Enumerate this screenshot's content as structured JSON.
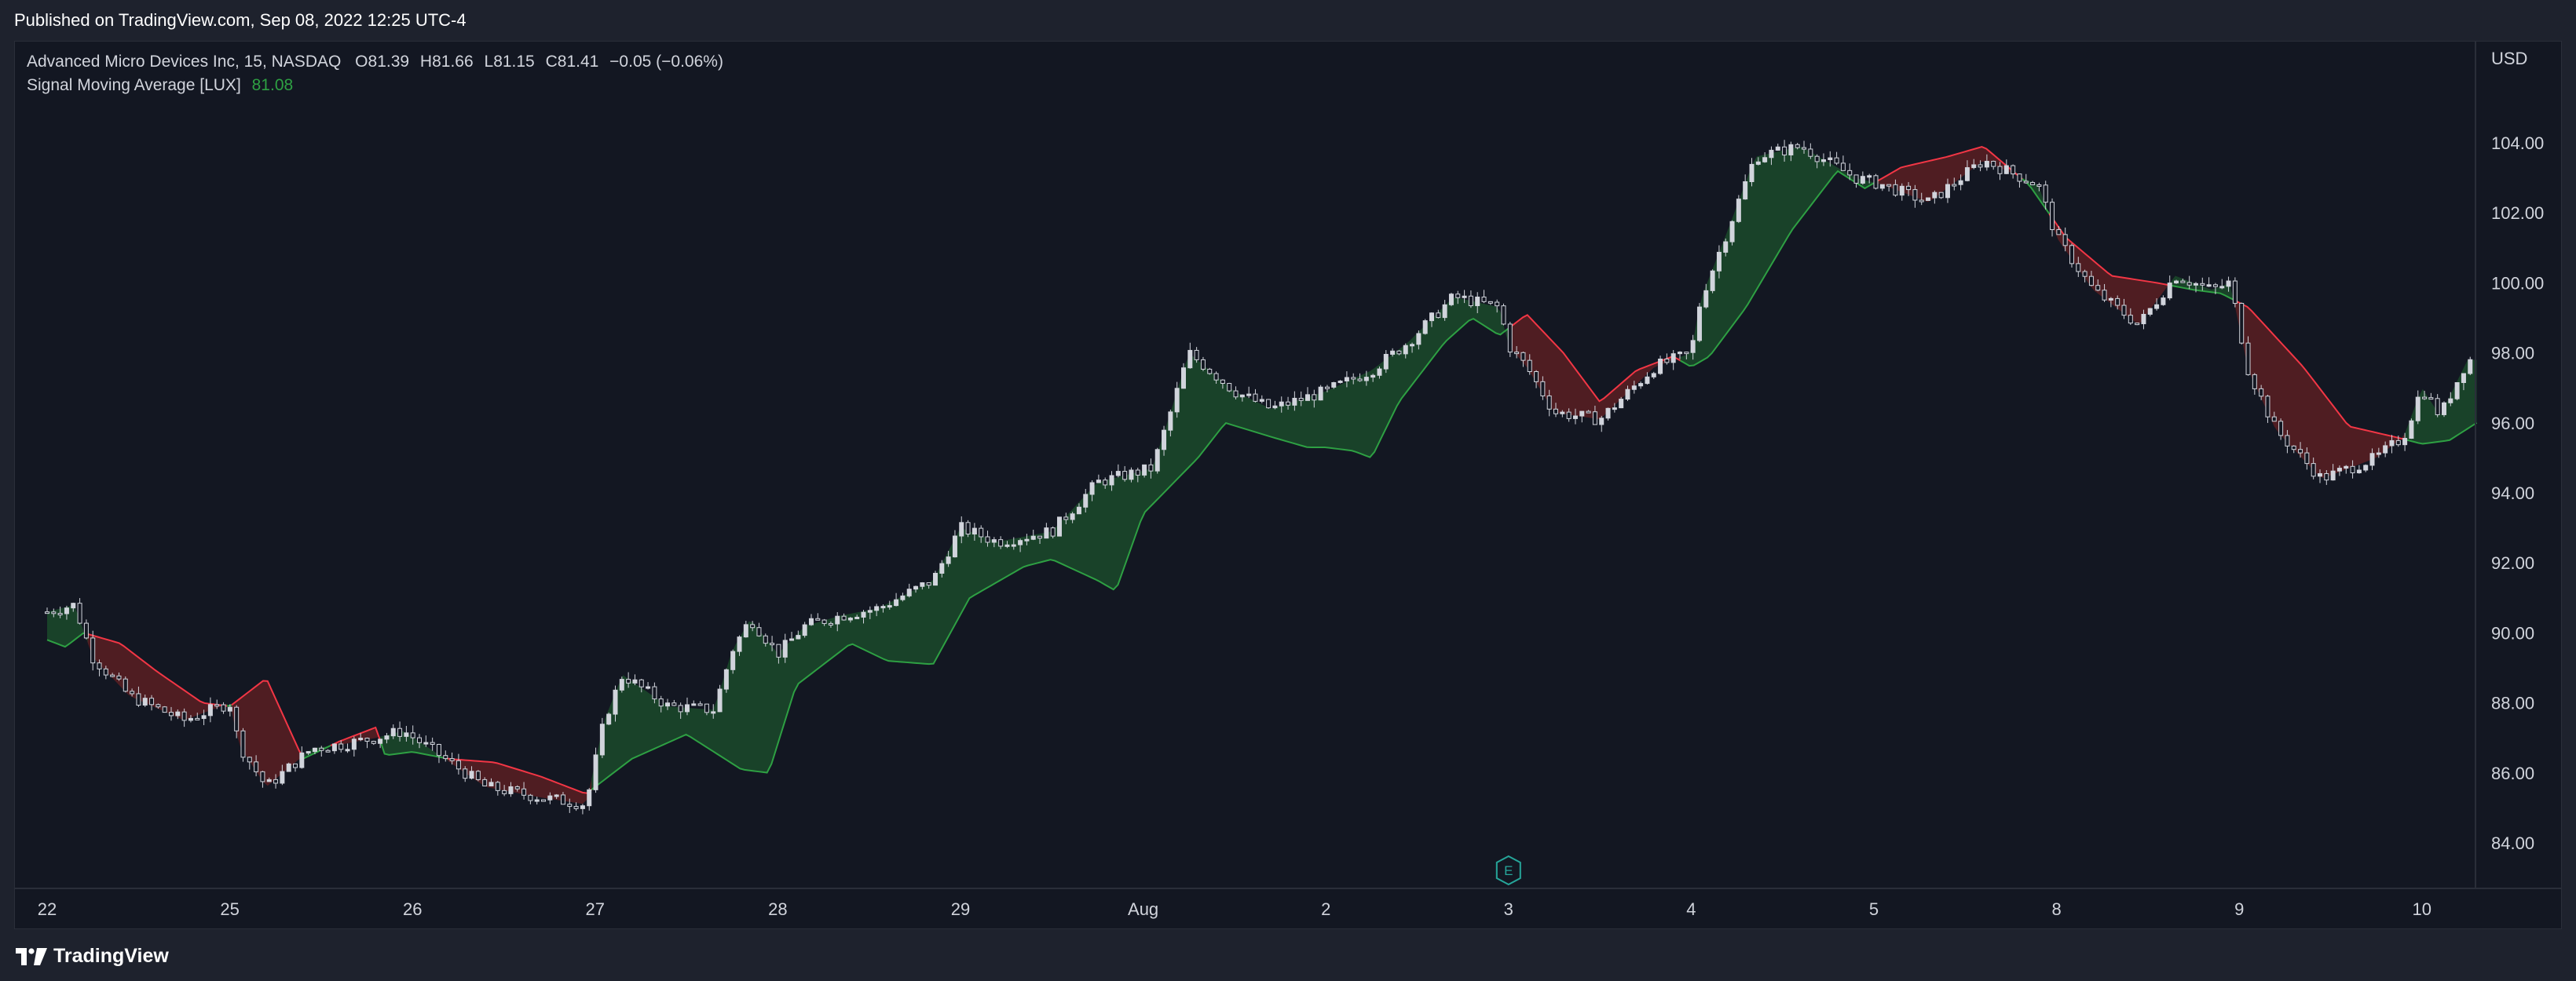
{
  "header": {
    "published": "Published on TradingView.com, Sep 08, 2022 12:25 UTC-4"
  },
  "legend": {
    "symbol": "Advanced Micro Devices Inc, 15, NASDAQ",
    "o_label": "O",
    "o_value": "81.39",
    "h_label": "H",
    "h_value": "81.66",
    "l_label": "L",
    "l_value": "81.15",
    "c_label": "C",
    "c_value": "81.41",
    "change": "−0.05 (−0.06%)",
    "indicator": "Signal Moving Average [LUX]",
    "indicator_value": "81.08"
  },
  "axis": {
    "currency": "USD",
    "event_marker": "E"
  },
  "footer": {
    "brand": "TradingView"
  },
  "colors": {
    "background": "#131722",
    "frame": "#1e222d",
    "up_fill": "#1b4a2a",
    "down_fill": "#5a1f22",
    "up_line": "#2ea043",
    "down_line": "#f23645",
    "candle": "#d1d4dc",
    "event": "#26a69a"
  },
  "chart_data": {
    "type": "candlestick",
    "title": "",
    "ylabel": "",
    "xlabel": "",
    "ylim": [
      83.0,
      106.0
    ],
    "y_ticks": [
      "84.00",
      "86.00",
      "88.00",
      "90.00",
      "92.00",
      "94.00",
      "96.00",
      "98.00",
      "100.00",
      "102.00",
      "104.00"
    ],
    "x_tick_labels": [
      "22",
      "25",
      "26",
      "27",
      "28",
      "29",
      "Aug",
      "2",
      "3",
      "4",
      "5",
      "8",
      "9",
      "10"
    ],
    "grid": false,
    "price_series": [
      {
        "x": 0.0,
        "p": 90.6
      },
      {
        "x": 0.15,
        "p": 90.8
      },
      {
        "x": 0.25,
        "p": 89.3
      },
      {
        "x": 0.45,
        "p": 88.2
      },
      {
        "x": 0.75,
        "p": 87.5
      },
      {
        "x": 1.0,
        "p": 88.0
      },
      {
        "x": 1.05,
        "p": 86.8
      },
      {
        "x": 1.2,
        "p": 85.6
      },
      {
        "x": 1.45,
        "p": 86.7
      },
      {
        "x": 1.6,
        "p": 86.8
      },
      {
        "x": 1.8,
        "p": 87.0
      },
      {
        "x": 1.95,
        "p": 87.2
      },
      {
        "x": 2.15,
        "p": 86.5
      },
      {
        "x": 2.4,
        "p": 85.6
      },
      {
        "x": 2.7,
        "p": 85.3
      },
      {
        "x": 2.95,
        "p": 85.1
      },
      {
        "x": 3.05,
        "p": 87.5
      },
      {
        "x": 3.15,
        "p": 88.8
      },
      {
        "x": 3.4,
        "p": 87.9
      },
      {
        "x": 3.65,
        "p": 87.8
      },
      {
        "x": 3.75,
        "p": 89.5
      },
      {
        "x": 3.85,
        "p": 90.4
      },
      {
        "x": 4.0,
        "p": 89.4
      },
      {
        "x": 4.15,
        "p": 90.2
      },
      {
        "x": 4.35,
        "p": 90.5
      },
      {
        "x": 4.55,
        "p": 90.7
      },
      {
        "x": 4.85,
        "p": 91.5
      },
      {
        "x": 5.0,
        "p": 93.0
      },
      {
        "x": 5.2,
        "p": 92.6
      },
      {
        "x": 5.5,
        "p": 92.9
      },
      {
        "x": 5.75,
        "p": 94.3
      },
      {
        "x": 6.05,
        "p": 94.7
      },
      {
        "x": 6.15,
        "p": 96.3
      },
      {
        "x": 6.25,
        "p": 98.0
      },
      {
        "x": 6.5,
        "p": 96.9
      },
      {
        "x": 6.7,
        "p": 96.4
      },
      {
        "x": 7.0,
        "p": 96.9
      },
      {
        "x": 7.25,
        "p": 97.5
      },
      {
        "x": 7.45,
        "p": 98.3
      },
      {
        "x": 7.7,
        "p": 99.6
      },
      {
        "x": 7.95,
        "p": 99.3
      },
      {
        "x": 8.0,
        "p": 98.2
      },
      {
        "x": 8.1,
        "p": 97.6
      },
      {
        "x": 8.25,
        "p": 96.3
      },
      {
        "x": 8.5,
        "p": 96.1
      },
      {
        "x": 8.8,
        "p": 97.6
      },
      {
        "x": 9.0,
        "p": 98.0
      },
      {
        "x": 9.05,
        "p": 99.5
      },
      {
        "x": 9.2,
        "p": 101.5
      },
      {
        "x": 9.35,
        "p": 103.6
      },
      {
        "x": 9.6,
        "p": 103.9
      },
      {
        "x": 9.9,
        "p": 103.0
      },
      {
        "x": 10.05,
        "p": 102.8
      },
      {
        "x": 10.3,
        "p": 102.3
      },
      {
        "x": 10.6,
        "p": 103.5
      },
      {
        "x": 10.9,
        "p": 102.8
      },
      {
        "x": 11.0,
        "p": 101.3
      },
      {
        "x": 11.2,
        "p": 99.8
      },
      {
        "x": 11.45,
        "p": 98.8
      },
      {
        "x": 11.65,
        "p": 100.2
      },
      {
        "x": 11.85,
        "p": 99.8
      },
      {
        "x": 11.95,
        "p": 100.0
      },
      {
        "x": 12.05,
        "p": 97.5
      },
      {
        "x": 12.2,
        "p": 95.8
      },
      {
        "x": 12.45,
        "p": 94.4
      },
      {
        "x": 12.75,
        "p": 95.0
      },
      {
        "x": 12.9,
        "p": 95.6
      },
      {
        "x": 13.0,
        "p": 97.0
      },
      {
        "x": 13.1,
        "p": 96.2
      },
      {
        "x": 13.25,
        "p": 97.8
      }
    ],
    "signal_ma": [
      {
        "x": 0.0,
        "v": 89.8
      },
      {
        "x": 0.1,
        "v": 89.6
      },
      {
        "x": 0.2,
        "v": 90.0
      },
      {
        "x": 0.4,
        "v": 89.7
      },
      {
        "x": 0.6,
        "v": 88.9
      },
      {
        "x": 0.85,
        "v": 88.0
      },
      {
        "x": 1.0,
        "v": 87.9
      },
      {
        "x": 1.2,
        "v": 88.7
      },
      {
        "x": 1.4,
        "v": 86.4
      },
      {
        "x": 1.6,
        "v": 86.9
      },
      {
        "x": 1.8,
        "v": 87.3
      },
      {
        "x": 1.85,
        "v": 86.5
      },
      {
        "x": 2.0,
        "v": 86.6
      },
      {
        "x": 2.2,
        "v": 86.4
      },
      {
        "x": 2.45,
        "v": 86.3
      },
      {
        "x": 2.7,
        "v": 85.9
      },
      {
        "x": 2.95,
        "v": 85.4
      },
      {
        "x": 3.2,
        "v": 86.4
      },
      {
        "x": 3.5,
        "v": 87.1
      },
      {
        "x": 3.8,
        "v": 86.1
      },
      {
        "x": 3.95,
        "v": 86.0
      },
      {
        "x": 4.1,
        "v": 88.5
      },
      {
        "x": 4.4,
        "v": 89.7
      },
      {
        "x": 4.6,
        "v": 89.2
      },
      {
        "x": 4.85,
        "v": 89.1
      },
      {
        "x": 5.05,
        "v": 91.0
      },
      {
        "x": 5.35,
        "v": 91.9
      },
      {
        "x": 5.5,
        "v": 92.1
      },
      {
        "x": 5.75,
        "v": 91.5
      },
      {
        "x": 5.85,
        "v": 91.2
      },
      {
        "x": 6.0,
        "v": 93.4
      },
      {
        "x": 6.3,
        "v": 95.0
      },
      {
        "x": 6.45,
        "v": 96.0
      },
      {
        "x": 6.7,
        "v": 95.6
      },
      {
        "x": 6.9,
        "v": 95.3
      },
      {
        "x": 7.0,
        "v": 95.3
      },
      {
        "x": 7.15,
        "v": 95.2
      },
      {
        "x": 7.25,
        "v": 95.0
      },
      {
        "x": 7.4,
        "v": 96.6
      },
      {
        "x": 7.65,
        "v": 98.3
      },
      {
        "x": 7.8,
        "v": 99.0
      },
      {
        "x": 7.95,
        "v": 98.5
      },
      {
        "x": 8.1,
        "v": 99.1
      },
      {
        "x": 8.3,
        "v": 98.0
      },
      {
        "x": 8.5,
        "v": 96.6
      },
      {
        "x": 8.7,
        "v": 97.5
      },
      {
        "x": 8.9,
        "v": 97.9
      },
      {
        "x": 9.0,
        "v": 97.6
      },
      {
        "x": 9.1,
        "v": 97.9
      },
      {
        "x": 9.3,
        "v": 99.3
      },
      {
        "x": 9.55,
        "v": 101.5
      },
      {
        "x": 9.8,
        "v": 103.2
      },
      {
        "x": 9.95,
        "v": 102.7
      },
      {
        "x": 10.15,
        "v": 103.3
      },
      {
        "x": 10.4,
        "v": 103.6
      },
      {
        "x": 10.6,
        "v": 103.9
      },
      {
        "x": 10.85,
        "v": 102.8
      },
      {
        "x": 11.05,
        "v": 101.3
      },
      {
        "x": 11.3,
        "v": 100.2
      },
      {
        "x": 11.55,
        "v": 100.0
      },
      {
        "x": 11.75,
        "v": 99.8
      },
      {
        "x": 11.9,
        "v": 99.7
      },
      {
        "x": 12.05,
        "v": 99.3
      },
      {
        "x": 12.35,
        "v": 97.6
      },
      {
        "x": 12.6,
        "v": 95.9
      },
      {
        "x": 12.85,
        "v": 95.6
      },
      {
        "x": 13.0,
        "v": 95.4
      },
      {
        "x": 13.15,
        "v": 95.5
      },
      {
        "x": 13.3,
        "v": 96.0
      }
    ],
    "event_marker_x": 8.0
  }
}
